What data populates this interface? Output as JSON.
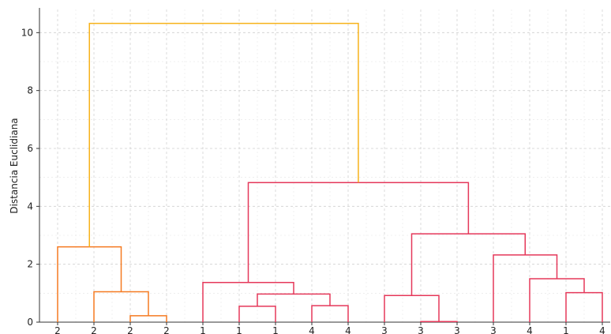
{
  "chart_data": {
    "type": "dendrogram",
    "ylabel": "Distancia Euclidiana",
    "ylim": [
      0,
      10.8
    ],
    "yticks": [
      0,
      2,
      4,
      6,
      8,
      10
    ],
    "grid": true,
    "leaves": [
      "2",
      "2",
      "2",
      "2",
      "1",
      "1",
      "1",
      "4",
      "4",
      "3",
      "3",
      "3",
      "3",
      "4",
      "1",
      "4"
    ],
    "colors": {
      "cluster_a": "#f57a21",
      "cluster_b": "#e5385a",
      "root": "#f7b21a"
    },
    "links": [
      {
        "left": 2,
        "right": 3,
        "height": 0.22,
        "group": "cluster_a"
      },
      {
        "left": 1,
        "right": "n0",
        "height": 1.05,
        "group": "cluster_a"
      },
      {
        "left": 0,
        "right": "n1",
        "height": 2.6,
        "group": "cluster_a"
      },
      {
        "left": 5,
        "right": 6,
        "height": 0.55,
        "group": "cluster_b"
      },
      {
        "left": 7,
        "right": 8,
        "height": 0.57,
        "group": "cluster_b"
      },
      {
        "left": "n3",
        "right": "n4",
        "height": 0.97,
        "group": "cluster_b"
      },
      {
        "left": 4,
        "right": "n5",
        "height": 1.37,
        "group": "cluster_b"
      },
      {
        "left": 10,
        "right": 11,
        "height": 0.02,
        "group": "cluster_b"
      },
      {
        "left": 9,
        "right": "n7",
        "height": 0.92,
        "group": "cluster_b"
      },
      {
        "left": 14,
        "right": 15,
        "height": 1.02,
        "group": "cluster_b"
      },
      {
        "left": 13,
        "right": "n9",
        "height": 1.5,
        "group": "cluster_b"
      },
      {
        "left": 12,
        "right": "n10",
        "height": 2.32,
        "group": "cluster_b"
      },
      {
        "left": "n8",
        "right": "n11",
        "height": 3.05,
        "group": "cluster_b"
      },
      {
        "left": "n6",
        "right": "n12",
        "height": 4.82,
        "group": "cluster_b"
      },
      {
        "left": "n2",
        "right": "n13",
        "height": 10.32,
        "group": "root"
      }
    ]
  }
}
